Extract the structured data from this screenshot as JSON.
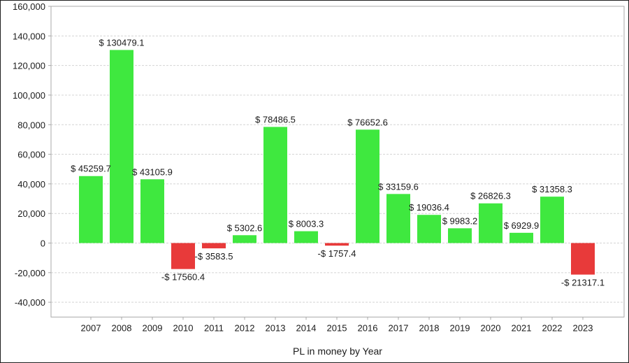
{
  "chart_data": {
    "type": "bar",
    "categories": [
      "2007",
      "2008",
      "2009",
      "2010",
      "2011",
      "2012",
      "2013",
      "2014",
      "2015",
      "2016",
      "2017",
      "2018",
      "2019",
      "2020",
      "2021",
      "2022",
      "2023"
    ],
    "values": [
      45259.7,
      130479.1,
      43105.9,
      -17560.4,
      -3583.5,
      5302.6,
      78486.5,
      8003.3,
      -1757.4,
      76652.6,
      33159.6,
      19036.4,
      9983.2,
      26826.3,
      6929.9,
      31358.3,
      -21317.1
    ],
    "data_labels": [
      "$ 45259.7",
      "$ 130479.1",
      "$ 43105.9",
      "-$ 17560.4",
      "-$ 3583.5",
      "$ 5302.6",
      "$ 78486.5",
      "$ 8003.3",
      "-$ 1757.4",
      "$ 76652.6",
      "$ 33159.6",
      "$ 19036.4",
      "$ 9983.2",
      "$ 26826.3",
      "$ 6929.9",
      "$ 31358.3",
      "-$ 21317.1"
    ],
    "title": "",
    "xlabel": "PL in money by Year",
    "ylabel": "",
    "ylim": [
      -50000,
      160000
    ],
    "yticks": [
      -40000,
      -20000,
      0,
      20000,
      40000,
      60000,
      80000,
      100000,
      120000,
      140000,
      160000
    ],
    "ytick_labels": [
      "-40,000",
      "-20,000",
      "0",
      "20,000",
      "40,000",
      "60,000",
      "80,000",
      "100,000",
      "120,000",
      "140,000",
      "160,000"
    ],
    "grid": true,
    "colors": {
      "positive": "#3fe83f",
      "negative": "#e83a3a",
      "grid": "#d4d4d4",
      "axis": "#a8a8a8"
    }
  }
}
